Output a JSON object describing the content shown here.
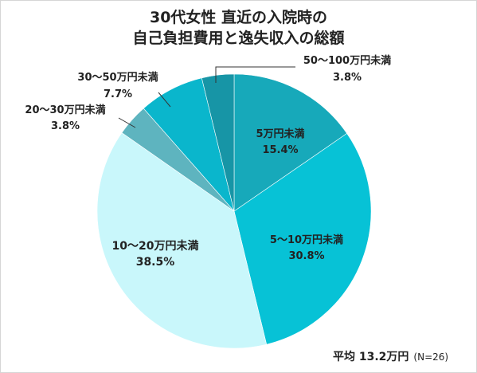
{
  "title_line1": "30代女性 直近の入院時の",
  "title_line2": "自己負担費用と逸失収入の総額",
  "average_label": "平均 13.2万円",
  "sample_size": "(N=26)",
  "chart_data": {
    "type": "pie",
    "title": "30代女性 直近の入院時の自己負担費用と逸失収入の総額",
    "slices": [
      {
        "label": "5万円未満",
        "value": 15.4,
        "pct": "15.4%",
        "color": "#17a9ba"
      },
      {
        "label": "5～10万円未満",
        "value": 30.8,
        "pct": "30.8%",
        "color": "#07c2d6"
      },
      {
        "label": "10～20万円未満",
        "value": 38.5,
        "pct": "38.5%",
        "color": "#c9f7fb"
      },
      {
        "label": "20～30万円未満",
        "value": 3.8,
        "pct": "3.8%",
        "color": "#5eb4bf"
      },
      {
        "label": "30～50万円未満",
        "value": 7.7,
        "pct": "7.7%",
        "color": "#0ab6cc"
      },
      {
        "label": "50～100万円未満",
        "value": 3.8,
        "pct": "3.8%",
        "color": "#1795a6"
      }
    ],
    "start_angle_deg": 0,
    "direction": "clockwise"
  }
}
